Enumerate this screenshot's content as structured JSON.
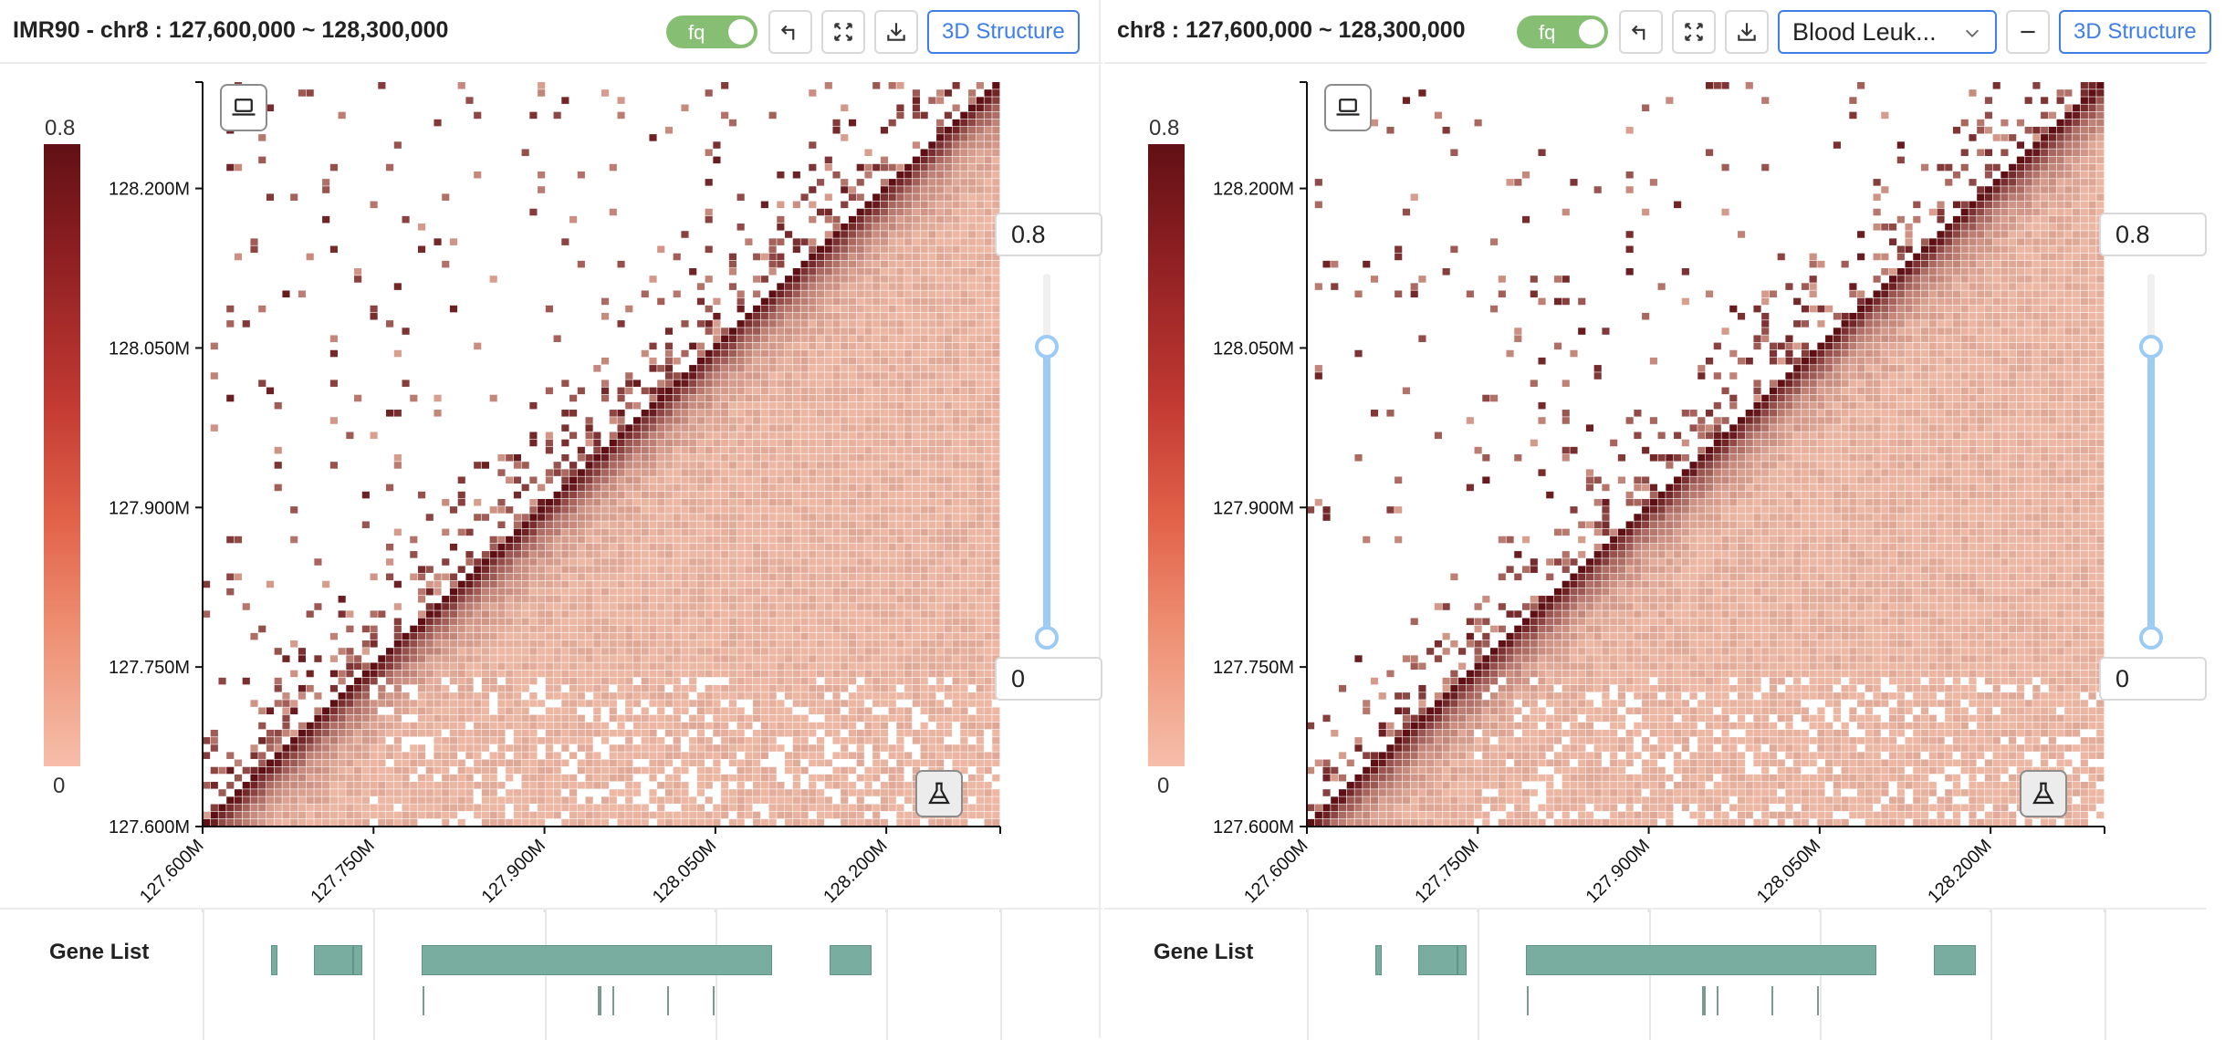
{
  "panels": [
    {
      "id": "left",
      "title": "IMR90 - chr8 : 127,600,000 ~ 128,300,000",
      "toggle_label": "fq",
      "structure_button": "3D Structure",
      "legend": {
        "max": "0.8",
        "min": "0"
      },
      "slider": {
        "upper_input": "0.8",
        "lower_input": "0",
        "upper_value": 0.8,
        "lower_value": 0
      },
      "gene_list_label": "Gene List"
    },
    {
      "id": "right",
      "title": "chr8 : 127,600,000 ~ 128,300,000",
      "toggle_label": "fq",
      "select_value": "Blood Leuk...",
      "structure_button": "3D Structure",
      "legend": {
        "max": "0.8",
        "min": "0"
      },
      "slider": {
        "upper_input": "0.8",
        "lower_input": "0",
        "upper_value": 0.8,
        "lower_value": 0
      },
      "gene_list_label": "Gene List"
    }
  ],
  "chart_data": [
    {
      "type": "heatmap",
      "title": "IMR90 - chr8 : 127,600,000 ~ 128,300,000",
      "x_range": [
        127600000,
        128300000
      ],
      "y_range": [
        127600000,
        128300000
      ],
      "x_ticks": [
        "127.600M",
        "127.750M",
        "127.900M",
        "128.050M",
        "128.200M"
      ],
      "y_ticks": [
        "127.600M",
        "127.750M",
        "127.900M",
        "128.050M",
        "128.200M"
      ],
      "color_range": [
        0,
        0.8
      ],
      "colors": {
        "low": "#f6c2ad",
        "high": "#5e0f14"
      },
      "genes": [
        {
          "track": 1,
          "start": 127660000,
          "end": 127666000
        },
        {
          "track": 1,
          "start": 127698000,
          "end": 127732000
        },
        {
          "track": 1,
          "start": 127732000,
          "end": 127740000
        },
        {
          "track": 1,
          "start": 127792000,
          "end": 128100000
        },
        {
          "track": 1,
          "start": 128150000,
          "end": 128187000
        },
        {
          "track": 2,
          "start": 127793000,
          "end": 127794000
        },
        {
          "track": 2,
          "start": 127947000,
          "end": 127950000
        },
        {
          "track": 2,
          "start": 127960000,
          "end": 127961000
        },
        {
          "track": 2,
          "start": 128008000,
          "end": 128009000
        },
        {
          "track": 2,
          "start": 128048000,
          "end": 128049000
        }
      ]
    },
    {
      "type": "heatmap",
      "title": "chr8 : 127,600,000 ~ 128,300,000",
      "x_range": [
        127600000,
        128300000
      ],
      "y_range": [
        127600000,
        128300000
      ],
      "x_ticks": [
        "127.600M",
        "127.750M",
        "127.900M",
        "128.050M",
        "128.200M"
      ],
      "y_ticks": [
        "127.600M",
        "127.750M",
        "127.900M",
        "128.050M",
        "128.200M"
      ],
      "color_range": [
        0,
        0.8
      ],
      "colors": {
        "low": "#f6c2ad",
        "high": "#5e0f14"
      },
      "genes": [
        {
          "track": 1,
          "start": 127660000,
          "end": 127666000
        },
        {
          "track": 1,
          "start": 127698000,
          "end": 127732000
        },
        {
          "track": 1,
          "start": 127732000,
          "end": 127740000
        },
        {
          "track": 1,
          "start": 127792000,
          "end": 128100000
        },
        {
          "track": 1,
          "start": 128150000,
          "end": 128187000
        },
        {
          "track": 2,
          "start": 127793000,
          "end": 127794000
        },
        {
          "track": 2,
          "start": 127947000,
          "end": 127950000
        },
        {
          "track": 2,
          "start": 127960000,
          "end": 127961000
        },
        {
          "track": 2,
          "start": 128008000,
          "end": 128009000
        },
        {
          "track": 2,
          "start": 128048000,
          "end": 128049000
        }
      ]
    }
  ]
}
